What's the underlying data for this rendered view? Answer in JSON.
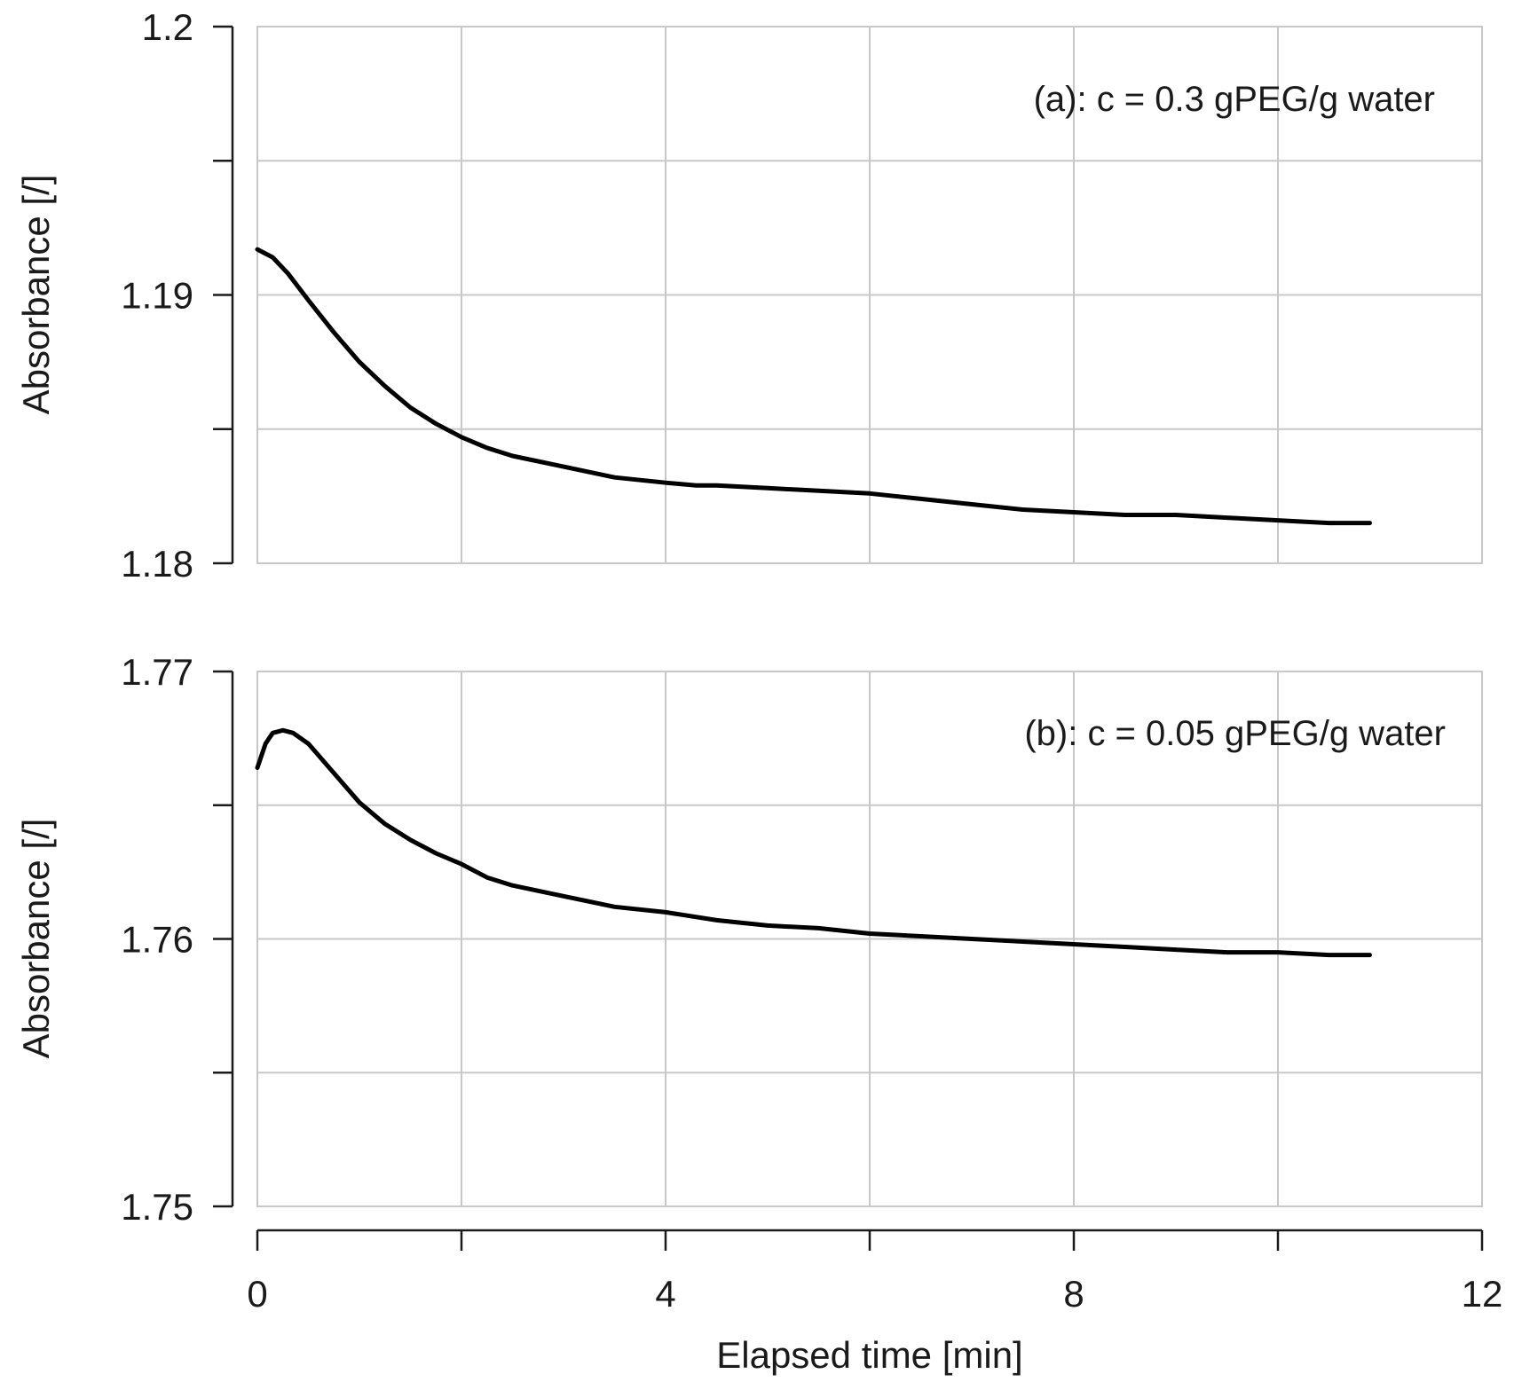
{
  "chart_data": [
    {
      "type": "line",
      "panel": "a",
      "annotation": "(a): c = 0.3 gPEG/g water",
      "xlabel": "",
      "ylabel": "Absorbance [/]",
      "xlim": [
        0,
        12
      ],
      "ylim": [
        1.18,
        1.2
      ],
      "yticks": [
        1.18,
        1.185,
        1.19,
        1.195,
        1.2
      ],
      "ytick_labels": [
        "1.18",
        "",
        "1.19",
        "",
        "1.2"
      ],
      "xticks": [
        0,
        2,
        4,
        6,
        8,
        10,
        12
      ],
      "grid": true,
      "series": [
        {
          "name": "c = 0.3 gPEG/g water",
          "x": [
            0,
            0.15,
            0.3,
            0.5,
            0.75,
            1.0,
            1.25,
            1.5,
            1.75,
            2.0,
            2.25,
            2.5,
            3.0,
            3.5,
            4.0,
            4.3,
            4.5,
            5.0,
            5.5,
            6.0,
            6.5,
            7.0,
            7.5,
            8.0,
            8.5,
            9.0,
            9.5,
            10.0,
            10.5,
            10.9
          ],
          "values": [
            1.1917,
            1.1914,
            1.1908,
            1.1898,
            1.1886,
            1.1875,
            1.1866,
            1.1858,
            1.1852,
            1.1847,
            1.1843,
            1.184,
            1.1836,
            1.1832,
            1.183,
            1.1829,
            1.1829,
            1.1828,
            1.1827,
            1.1826,
            1.1824,
            1.1822,
            1.182,
            1.1819,
            1.1818,
            1.1818,
            1.1817,
            1.1816,
            1.1815,
            1.1815
          ]
        }
      ]
    },
    {
      "type": "line",
      "panel": "b",
      "annotation": "(b): c = 0.05 gPEG/g water",
      "xlabel": "Elapsed time [min]",
      "ylabel": "Absorbance [/]",
      "xlim": [
        0,
        12
      ],
      "ylim": [
        1.75,
        1.77
      ],
      "yticks": [
        1.75,
        1.755,
        1.76,
        1.765,
        1.77
      ],
      "ytick_labels": [
        "1.75",
        "",
        "1.76",
        "",
        "1.77"
      ],
      "xticks": [
        0,
        2,
        4,
        6,
        8,
        10,
        12
      ],
      "xtick_labels": [
        "0",
        "",
        "4",
        "",
        "8",
        "",
        "12"
      ],
      "grid": true,
      "series": [
        {
          "name": "c = 0.05 gPEG/g water",
          "x": [
            0,
            0.08,
            0.15,
            0.25,
            0.35,
            0.5,
            0.75,
            1.0,
            1.25,
            1.5,
            1.75,
            2.0,
            2.25,
            2.5,
            3.0,
            3.5,
            4.0,
            4.5,
            5.0,
            5.5,
            6.0,
            6.5,
            7.0,
            7.5,
            8.0,
            8.5,
            9.0,
            9.5,
            10.0,
            10.5,
            10.9
          ],
          "values": [
            1.7664,
            1.7673,
            1.7677,
            1.7678,
            1.7677,
            1.7673,
            1.7662,
            1.7651,
            1.7643,
            1.7637,
            1.7632,
            1.7628,
            1.7623,
            1.762,
            1.7616,
            1.7612,
            1.761,
            1.7607,
            1.7605,
            1.7604,
            1.7602,
            1.7601,
            1.76,
            1.7599,
            1.7598,
            1.7597,
            1.7596,
            1.7595,
            1.7595,
            1.7594,
            1.7594
          ]
        }
      ]
    }
  ]
}
